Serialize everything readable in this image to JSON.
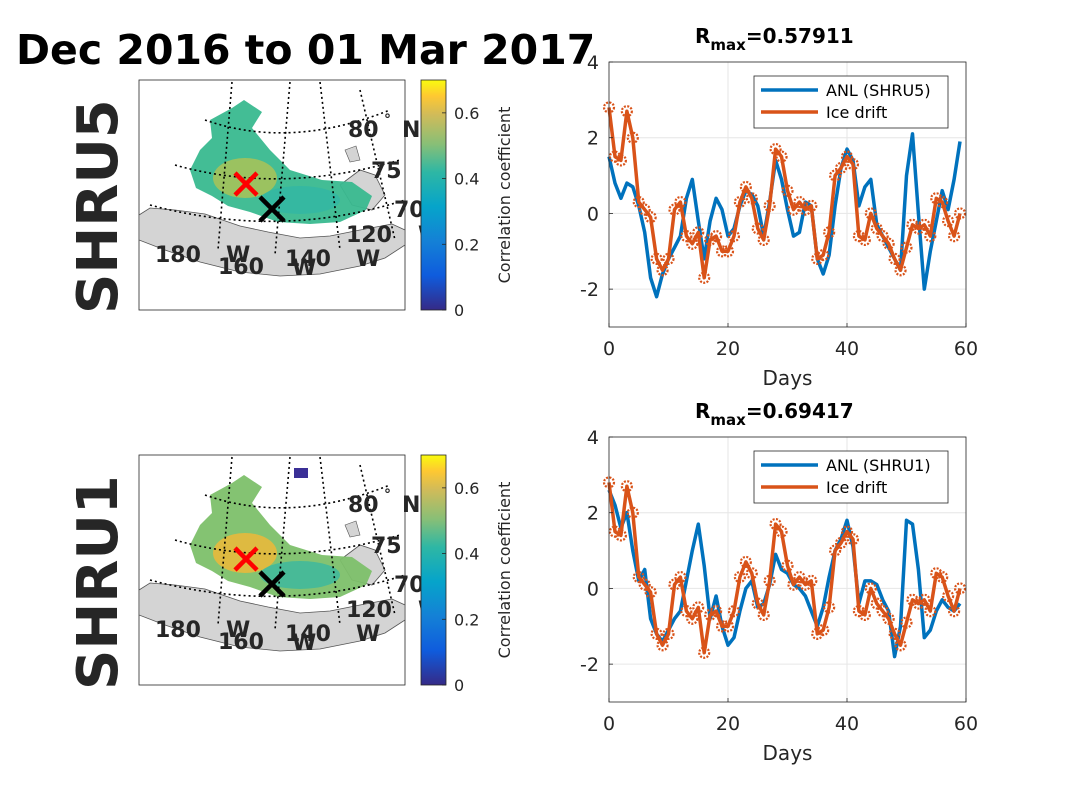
{
  "figure_title": "Dec 2016 to 01 Mar 2017",
  "colors": {
    "anl": "#0072bd",
    "ice": "#d95319",
    "land": "#d4d4d4",
    "red_marker": "#ff0000",
    "black_marker": "#000000"
  },
  "colorbar": {
    "label": "Correlation coefficient",
    "ticks": [
      "0",
      "0.2",
      "0.4",
      "0.6"
    ],
    "range": [
      0,
      0.7
    ]
  },
  "maps": [
    {
      "row_label": "SHRU5",
      "lat_labels": [
        "80",
        "N",
        "75",
        "70",
        "N"
      ],
      "lon_labels": [
        "180",
        "W",
        "160",
        "W",
        "140",
        "W",
        "120",
        "W"
      ]
    },
    {
      "row_label": "SHRU1",
      "lat_labels": [
        "80",
        "N",
        "75",
        "70",
        "N"
      ],
      "lon_labels": [
        "180",
        "W",
        "160",
        "W",
        "140",
        "W",
        "120",
        "W"
      ]
    }
  ],
  "chart_data": [
    {
      "type": "line",
      "title_main": "R",
      "title_sub": "max",
      "title_value": "=0.57911",
      "xlabel": "Days",
      "ylabel": "",
      "xlim": [
        0,
        60
      ],
      "ylim": [
        -3,
        4
      ],
      "xticks": [
        0,
        20,
        40,
        60
      ],
      "yticks": [
        -2,
        0,
        2,
        4
      ],
      "grid": true,
      "legend_position": "top-right",
      "series": [
        {
          "name": "ANL (SHRU5)",
          "x": [
            0,
            1,
            2,
            3,
            4,
            5,
            6,
            7,
            8,
            9,
            10,
            11,
            12,
            13,
            14,
            15,
            16,
            17,
            18,
            19,
            20,
            21,
            22,
            23,
            24,
            25,
            26,
            27,
            28,
            29,
            30,
            31,
            32,
            33,
            34,
            35,
            36,
            37,
            38,
            39,
            40,
            41,
            42,
            43,
            44,
            45,
            46,
            47,
            48,
            49,
            50,
            51,
            52,
            53,
            54,
            55,
            56,
            57,
            58,
            59
          ],
          "y": [
            1.5,
            0.8,
            0.4,
            0.8,
            0.7,
            0.2,
            -0.5,
            -1.7,
            -2.2,
            -1.6,
            -1.2,
            -0.9,
            -0.6,
            0.4,
            0.9,
            -0.2,
            -1.2,
            -0.2,
            0.4,
            0.1,
            -0.6,
            -0.4,
            0.2,
            0.6,
            0.5,
            0.2,
            -0.6,
            0.3,
            1.4,
            0.9,
            0.1,
            -0.6,
            -0.5,
            0.3,
            0.2,
            -1.2,
            -1.6,
            -1.1,
            0.2,
            1.2,
            1.7,
            1.4,
            0.2,
            0.7,
            0.9,
            -0.3,
            -0.6,
            -0.9,
            -1.2,
            -1.5,
            1.0,
            2.1,
            0.0,
            -2.0,
            -1.0,
            -0.2,
            0.6,
            0.1,
            0.9,
            1.9
          ]
        },
        {
          "name": "Ice drift",
          "x": [
            0,
            1,
            2,
            3,
            4,
            5,
            6,
            7,
            8,
            9,
            10,
            11,
            12,
            13,
            14,
            15,
            16,
            17,
            18,
            19,
            20,
            21,
            22,
            23,
            24,
            25,
            26,
            27,
            28,
            29,
            30,
            31,
            32,
            33,
            34,
            35,
            36,
            37,
            38,
            39,
            40,
            41,
            42,
            43,
            44,
            45,
            46,
            47,
            48,
            49,
            50,
            51,
            52,
            53,
            54,
            55,
            56,
            57,
            58,
            59
          ],
          "y": [
            2.8,
            1.5,
            1.4,
            2.7,
            2.0,
            0.3,
            0.1,
            -0.1,
            -1.2,
            -1.5,
            -1.2,
            0.1,
            0.3,
            -0.6,
            -0.8,
            -0.5,
            -1.7,
            -0.7,
            -0.6,
            -1.0,
            -1.0,
            -0.6,
            0.3,
            0.7,
            0.4,
            -0.4,
            -0.7,
            0.2,
            1.7,
            1.5,
            0.6,
            0.1,
            0.3,
            0.1,
            0.2,
            -1.2,
            -1.1,
            -0.5,
            1.0,
            1.2,
            1.5,
            1.3,
            -0.6,
            -0.7,
            0.0,
            -0.4,
            -0.6,
            -0.8,
            -1.2,
            -1.5,
            -0.9,
            -0.3,
            -0.4,
            -0.3,
            -0.6,
            0.4,
            0.3,
            -0.2,
            -0.6,
            0.0
          ]
        }
      ]
    },
    {
      "type": "line",
      "title_main": "R",
      "title_sub": "max",
      "title_value": "=0.69417",
      "xlabel": "Days",
      "ylabel": "",
      "xlim": [
        0,
        60
      ],
      "ylim": [
        -3,
        4
      ],
      "xticks": [
        0,
        20,
        40,
        60
      ],
      "yticks": [
        -2,
        0,
        2,
        4
      ],
      "grid": true,
      "legend_position": "top-right",
      "series": [
        {
          "name": "ANL (SHRU1)",
          "x": [
            0,
            1,
            2,
            3,
            4,
            5,
            6,
            7,
            8,
            9,
            10,
            11,
            12,
            13,
            14,
            15,
            16,
            17,
            18,
            19,
            20,
            21,
            22,
            23,
            24,
            25,
            26,
            27,
            28,
            29,
            30,
            31,
            32,
            33,
            34,
            35,
            36,
            37,
            38,
            39,
            40,
            41,
            42,
            43,
            44,
            45,
            46,
            47,
            48,
            49,
            50,
            51,
            52,
            53,
            54,
            55,
            56,
            57,
            58,
            59
          ],
          "y": [
            2.6,
            2.2,
            1.6,
            2.0,
            1.0,
            0.2,
            0.5,
            -0.8,
            -1.2,
            -1.4,
            -1.1,
            -0.8,
            -0.6,
            0.2,
            1.0,
            1.7,
            0.6,
            -0.8,
            -0.2,
            -1.0,
            -1.5,
            -1.3,
            -0.6,
            0.0,
            0.2,
            -0.5,
            -0.4,
            0.1,
            0.9,
            0.5,
            0.4,
            0.1,
            0.0,
            -0.2,
            -0.6,
            -1.0,
            -0.5,
            0.3,
            1.0,
            1.3,
            1.8,
            1.1,
            -0.4,
            0.2,
            0.2,
            0.1,
            -0.3,
            -0.6,
            -1.8,
            -1.0,
            1.8,
            1.7,
            0.5,
            -1.3,
            -1.1,
            -0.6,
            -0.3,
            -0.5,
            -0.6,
            -0.4
          ]
        },
        {
          "name": "Ice drift",
          "x": [
            0,
            1,
            2,
            3,
            4,
            5,
            6,
            7,
            8,
            9,
            10,
            11,
            12,
            13,
            14,
            15,
            16,
            17,
            18,
            19,
            20,
            21,
            22,
            23,
            24,
            25,
            26,
            27,
            28,
            29,
            30,
            31,
            32,
            33,
            34,
            35,
            36,
            37,
            38,
            39,
            40,
            41,
            42,
            43,
            44,
            45,
            46,
            47,
            48,
            49,
            50,
            51,
            52,
            53,
            54,
            55,
            56,
            57,
            58,
            59
          ],
          "y": [
            2.8,
            1.5,
            1.4,
            2.7,
            2.0,
            0.3,
            0.1,
            -0.1,
            -1.2,
            -1.5,
            -1.2,
            0.1,
            0.3,
            -0.6,
            -0.8,
            -0.5,
            -1.7,
            -0.7,
            -0.6,
            -1.0,
            -1.0,
            -0.6,
            0.3,
            0.7,
            0.4,
            -0.4,
            -0.7,
            0.2,
            1.7,
            1.5,
            0.6,
            0.1,
            0.3,
            0.1,
            0.2,
            -1.2,
            -1.1,
            -0.5,
            1.0,
            1.2,
            1.5,
            1.3,
            -0.6,
            -0.7,
            0.0,
            -0.4,
            -0.6,
            -0.8,
            -1.2,
            -1.5,
            -0.9,
            -0.3,
            -0.4,
            -0.3,
            -0.6,
            0.4,
            0.3,
            -0.2,
            -0.6,
            0.0
          ]
        }
      ]
    }
  ]
}
